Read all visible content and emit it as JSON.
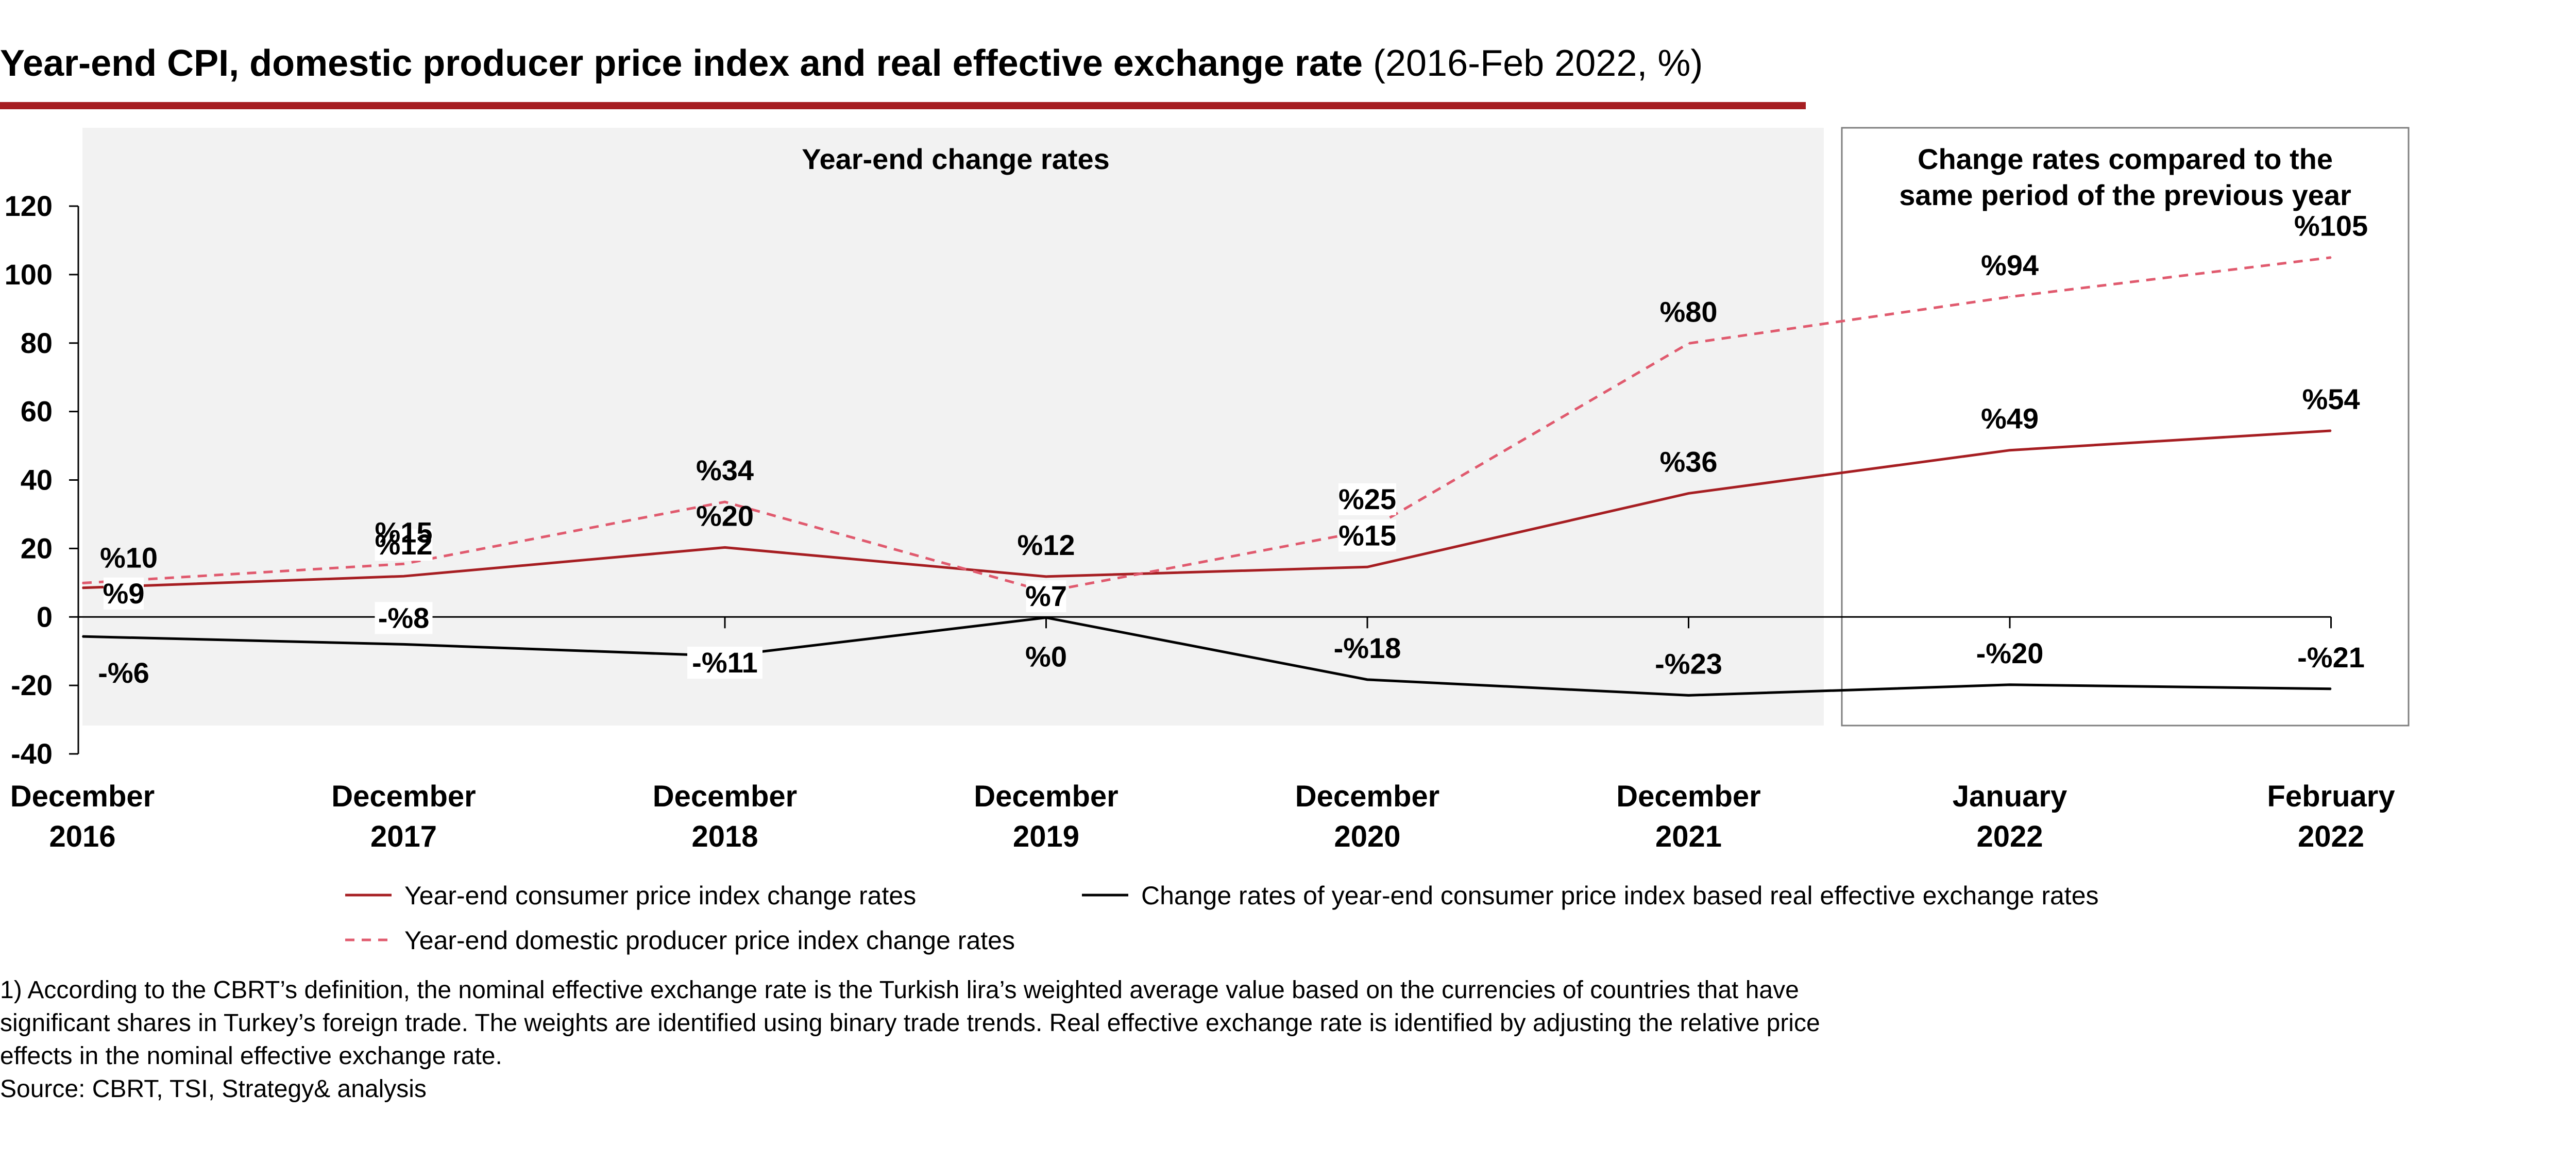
{
  "title": {
    "bold": "Year-end CPI, domestic producer price index and real effective exchange rate",
    "normal": " (2016-Feb 2022, %)"
  },
  "panels": {
    "left_label": "Year-end change rates",
    "right_label_line1": "Change rates compared to the",
    "right_label_line2": "same period of the previous year"
  },
  "colors": {
    "accent": "#a61e22",
    "cpi": "#a61e22",
    "ppi": "#e05a6e",
    "reer": "#000000",
    "panel_bg": "#f2f2f2",
    "panel_border": "#7f7f7f"
  },
  "chart_data": {
    "type": "line",
    "categories": [
      [
        "December",
        "2016"
      ],
      [
        "December",
        "2017"
      ],
      [
        "December",
        "2018"
      ],
      [
        "December",
        "2019"
      ],
      [
        "December",
        "2020"
      ],
      [
        "December",
        "2021"
      ],
      [
        "January",
        "2022"
      ],
      [
        "February",
        "2022"
      ]
    ],
    "ylim": [
      -40,
      120
    ],
    "yticks": [
      120,
      100,
      80,
      60,
      40,
      20,
      0,
      -20,
      -40
    ],
    "series": [
      {
        "key": "cpi",
        "name": "Year-end consumer price index change rates",
        "style": "solid",
        "values": [
          8.5,
          11.9,
          20.3,
          11.8,
          14.6,
          36.1,
          48.7,
          54.4
        ],
        "labels": [
          "%9",
          "%12",
          "%20",
          "%12",
          "%15",
          "%36",
          "%49",
          "%54"
        ]
      },
      {
        "key": "ppi",
        "name": "Year-end domestic producer price index change rates",
        "style": "dashed",
        "values": [
          9.9,
          15.5,
          33.6,
          7.4,
          25.2,
          79.9,
          93.5,
          105.0
        ],
        "labels": [
          "%10",
          "%15",
          "%34",
          "%7",
          "%25",
          "%80",
          "%94",
          "%105"
        ]
      },
      {
        "key": "reer",
        "name": "Change rates of year-end consumer price index based real effective exchange rates",
        "style": "solid",
        "values": [
          -5.7,
          -8.0,
          -11.4,
          -0.2,
          -18.3,
          -22.9,
          -19.8,
          -21.0
        ],
        "labels": [
          "-%6",
          "-%8",
          "-%11",
          "%0",
          "-%18",
          "-%23",
          "-%20",
          "-%21"
        ]
      }
    ],
    "legend_position": "bottom"
  },
  "notes": {
    "footnote": "1) According to the CBRT’s definition, the nominal effective exchange rate is the Turkish lira’s weighted average value based on the currencies of countries that have\nsignificant shares in Turkey’s foreign trade. The weights are identified using binary trade trends. Real effective exchange rate is identified by adjusting the relative price\neffects in the nominal effective exchange rate.",
    "source": "Source: CBRT, TSI, Strategy& analysis"
  }
}
